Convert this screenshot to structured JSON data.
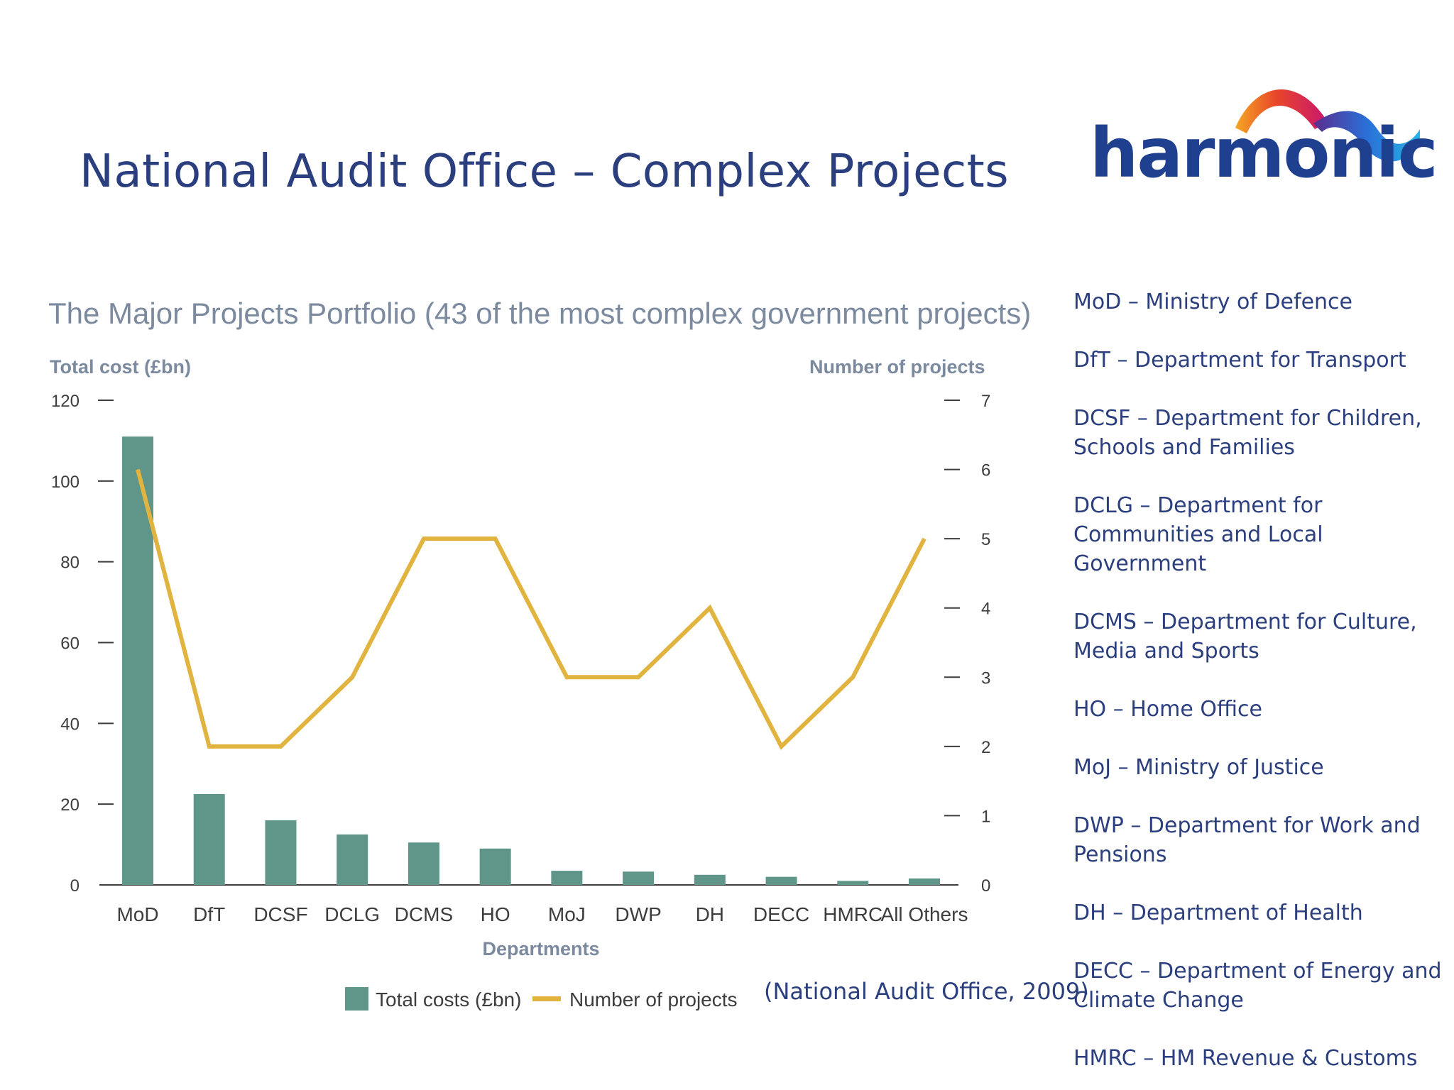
{
  "slide_title": "National Audit Office – Complex Projects",
  "logo": {
    "text": "harmonic"
  },
  "citation": "(National Audit Office, 2009)",
  "colors": {
    "bar": "#5f9689",
    "line": "#e1b33f",
    "title_blue": "#2b3f7f",
    "chart_text": "#7b8a9e"
  },
  "abbreviations": [
    "MoD – Ministry of Defence",
    "DfT – Department for Transport",
    "DCSF – Department for Children, Schools and Families",
    "DCLG – Department for Communities and Local Government",
    "DCMS – Department for Culture, Media and Sports",
    "HO – Home Office",
    "MoJ – Ministry of Justice",
    "DWP – Department for Work and Pensions",
    "DH – Department of Health",
    "DECC – Department of Energy and Climate Change",
    "HMRC – HM Revenue & Customs"
  ],
  "chart_data": {
    "type": "bar",
    "title": "The Major Projects Portfolio (43 of the most complex government projects)",
    "xlabel": "Departments",
    "ylabel": "Total cost (£bn)",
    "y2label": "Number of projects",
    "categories": [
      "MoD",
      "DfT",
      "DCSF",
      "DCLG",
      "DCMS",
      "HO",
      "MoJ",
      "DWP",
      "DH",
      "DECC",
      "HMRC",
      "All Others"
    ],
    "series": [
      {
        "name": "Total costs (£bn)",
        "type": "bar",
        "axis": "left",
        "values": [
          111,
          22.5,
          16,
          12.5,
          10.5,
          9,
          3.5,
          3.3,
          2.5,
          2,
          1,
          1.6
        ]
      },
      {
        "name": "Number of projects",
        "type": "line",
        "axis": "right",
        "values": [
          6,
          2,
          2,
          3,
          5,
          5,
          3,
          3,
          4,
          2,
          3,
          5
        ]
      }
    ],
    "ylim": [
      0,
      120
    ],
    "yticks": [
      0,
      20,
      40,
      60,
      80,
      100,
      120
    ],
    "y2lim": [
      0,
      7
    ],
    "y2ticks": [
      0,
      1,
      2,
      3,
      4,
      5,
      6,
      7
    ],
    "grid": false,
    "legend": "bottom"
  }
}
